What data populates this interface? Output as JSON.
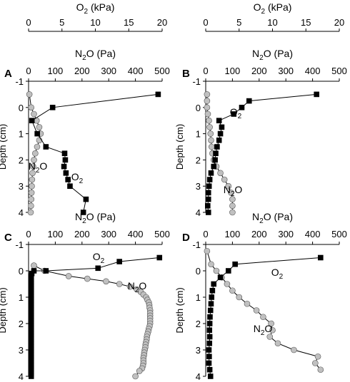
{
  "figure": {
    "top_axis_title": "O2 (kPa)",
    "mid_axis_title": "N2O (Pa)",
    "y_axis_title": "Depth (cm)",
    "o2_ticks": [
      "0",
      "5",
      "10",
      "15",
      "20"
    ],
    "n2o_ticks": [
      "0",
      "100",
      "200",
      "300",
      "400",
      "500"
    ],
    "depth_ticks": [
      "-1",
      "0",
      "1",
      "2",
      "3",
      "4"
    ]
  },
  "chart_data": [
    {
      "panel": "A",
      "type": "line",
      "x_axes": [
        {
          "label": "O2 (kPa)",
          "range": [
            0,
            20
          ],
          "printed": true
        },
        {
          "label": "N2O (Pa)",
          "range": [
            0,
            500
          ]
        }
      ],
      "y_axis": {
        "label": "Depth (cm)",
        "range": [
          -1,
          4
        ],
        "inverted": true
      },
      "series": [
        {
          "name": "O2",
          "axis": "O2",
          "marker": "square",
          "color": "#000000",
          "depth": [
            -0.5,
            0,
            0.5,
            1,
            1.5,
            1.75,
            2,
            2.25,
            2.5,
            2.75,
            3,
            3.5,
            4
          ],
          "values": [
            19.4,
            3.6,
            0.5,
            1.3,
            2.6,
            5.4,
            5.5,
            5.3,
            5.6,
            5.9,
            6.2,
            8.6,
            8.2
          ]
        },
        {
          "name": "N2O",
          "axis": "N2O",
          "marker": "circle",
          "color": "#c0c0c0",
          "depth": [
            -0.5,
            0,
            0.25,
            0.5,
            0.75,
            1,
            1.25,
            1.5,
            1.75,
            2,
            2.25,
            2.5,
            2.75,
            3,
            3.25,
            3.5,
            3.75,
            4
          ],
          "values": [
            3,
            10,
            20,
            30,
            40,
            45,
            40,
            32,
            25,
            20,
            17,
            15,
            13,
            12,
            11,
            10,
            9,
            8
          ]
        }
      ],
      "annotations": [
        "O2",
        "N2O"
      ]
    },
    {
      "panel": "B",
      "type": "line",
      "x_axes": [
        {
          "label": "O2 (kPa)",
          "range": [
            0,
            20
          ],
          "printed": true
        },
        {
          "label": "N2O (Pa)",
          "range": [
            0,
            500
          ]
        }
      ],
      "y_axis": {
        "label": "Depth (cm)",
        "range": [
          -1,
          4
        ],
        "inverted": true
      },
      "series": [
        {
          "name": "O2",
          "axis": "O2",
          "marker": "square",
          "color": "#000000",
          "depth": [
            -0.5,
            -0.25,
            0,
            0.25,
            0.5,
            0.75,
            1,
            1.25,
            1.5,
            1.75,
            2,
            2.25,
            2.5,
            2.75,
            3,
            3.25,
            3.5,
            3.75,
            4
          ],
          "values": [
            16.6,
            6.5,
            5.4,
            4.2,
            2.0,
            2.4,
            2.2,
            2.0,
            1.7,
            1.5,
            1.4,
            1.2,
            0.8,
            0.6,
            0.5,
            0.4,
            0.4,
            0.3,
            0.4
          ]
        },
        {
          "name": "N2O",
          "axis": "N2O",
          "marker": "circle",
          "color": "#c0c0c0",
          "depth": [
            -0.5,
            -0.25,
            0,
            0.25,
            0.5,
            0.75,
            1,
            1.25,
            1.5,
            1.75,
            2,
            2.25,
            2.5,
            2.75,
            3,
            3.25,
            3.5,
            3.75,
            4
          ],
          "values": [
            5,
            5,
            5,
            8,
            12,
            15,
            18,
            20,
            22,
            25,
            30,
            40,
            55,
            70,
            85,
            95,
            100,
            100,
            100
          ]
        }
      ],
      "annotations": [
        "O2",
        "N2O"
      ]
    },
    {
      "panel": "C",
      "type": "line",
      "x_axes": [
        {
          "label": "N2O (Pa)",
          "range": [
            0,
            500
          ]
        }
      ],
      "y_axis": {
        "label": "Depth (cm)",
        "range": [
          -1,
          4
        ],
        "inverted": true
      },
      "series": [
        {
          "name": "O2",
          "marker": "square",
          "color": "#000000",
          "depth": [
            -0.5,
            -0.35,
            -0.1,
            0,
            0,
            0.1,
            0.2,
            0.3,
            0.4,
            0.5,
            0.6,
            0.7,
            0.8,
            0.9,
            1.0,
            1.1,
            1.2,
            1.3,
            1.4,
            1.5,
            1.6,
            1.7,
            1.8,
            1.9,
            2.0,
            2.1,
            2.2,
            2.3,
            2.4,
            2.5,
            2.6,
            2.7,
            2.8,
            2.9,
            3.0,
            3.1,
            3.2,
            3.3,
            3.4,
            3.5,
            3.6,
            3.7,
            3.8,
            3.9,
            4.0
          ],
          "values": [
            490,
            340,
            260,
            65,
            20,
            12,
            10,
            10,
            10,
            10,
            10,
            10,
            10,
            10,
            10,
            10,
            10,
            10,
            10,
            10,
            10,
            10,
            10,
            10,
            10,
            10,
            10,
            10,
            10,
            10,
            10,
            10,
            10,
            10,
            10,
            10,
            10,
            10,
            10,
            10,
            10,
            10,
            10,
            10,
            10
          ]
        },
        {
          "name": "N2O",
          "marker": "circle",
          "color": "#c0c0c0",
          "depth": [
            -0.2,
            0,
            0.2,
            0.3,
            0.4,
            0.5,
            0.6,
            0.7,
            0.8,
            0.9,
            1.0,
            1.1,
            1.2,
            1.3,
            1.4,
            1.5,
            1.6,
            1.7,
            1.8,
            1.9,
            2.0,
            2.1,
            2.2,
            2.3,
            2.4,
            2.5,
            2.6,
            2.7,
            2.8,
            2.9,
            3.0,
            3.1,
            3.2,
            3.3,
            3.4,
            3.5,
            3.6,
            3.7,
            3.8,
            4.0
          ],
          "values": [
            20,
            60,
            150,
            220,
            290,
            340,
            380,
            405,
            420,
            430,
            440,
            445,
            450,
            452,
            453,
            455,
            455,
            455,
            455,
            455,
            455,
            453,
            450,
            448,
            445,
            443,
            442,
            440,
            438,
            437,
            435,
            433,
            432,
            430,
            430,
            430,
            428,
            425,
            415,
            400
          ]
        }
      ],
      "annotations": [
        "O2",
        "N2O"
      ]
    },
    {
      "panel": "D",
      "type": "line",
      "x_axes": [
        {
          "label": "N2O (Pa)",
          "range": [
            0,
            500
          ]
        }
      ],
      "y_axis": {
        "label": "Depth (cm)",
        "range": [
          -1,
          4
        ],
        "inverted": true
      },
      "series": [
        {
          "name": "O2",
          "marker": "square",
          "color": "#000000",
          "depth": [
            -0.5,
            -0.25,
            0,
            0.25,
            0.5,
            0.75,
            1,
            1.25,
            1.5,
            1.75,
            2,
            2.25,
            2.5,
            2.75,
            3,
            3.25,
            3.5,
            3.75,
            4
          ],
          "values": [
            430,
            110,
            85,
            55,
            30,
            25,
            22,
            20,
            18,
            16,
            15,
            14,
            15,
            14,
            12,
            13,
            12,
            15,
            18
          ]
        },
        {
          "name": "N2O",
          "marker": "circle",
          "color": "#c0c0c0",
          "depth": [
            -0.75,
            -0.25,
            0,
            0.25,
            0.5,
            0.75,
            1,
            1.25,
            1.5,
            1.75,
            2,
            2.25,
            2.5,
            2.75,
            3,
            3.25,
            3.5,
            3.75
          ],
          "values": [
            5,
            20,
            40,
            60,
            80,
            100,
            125,
            155,
            190,
            215,
            245,
            250,
            240,
            270,
            330,
            420,
            410,
            430
          ]
        }
      ],
      "annotations": [
        "O2",
        "N2O"
      ]
    }
  ]
}
